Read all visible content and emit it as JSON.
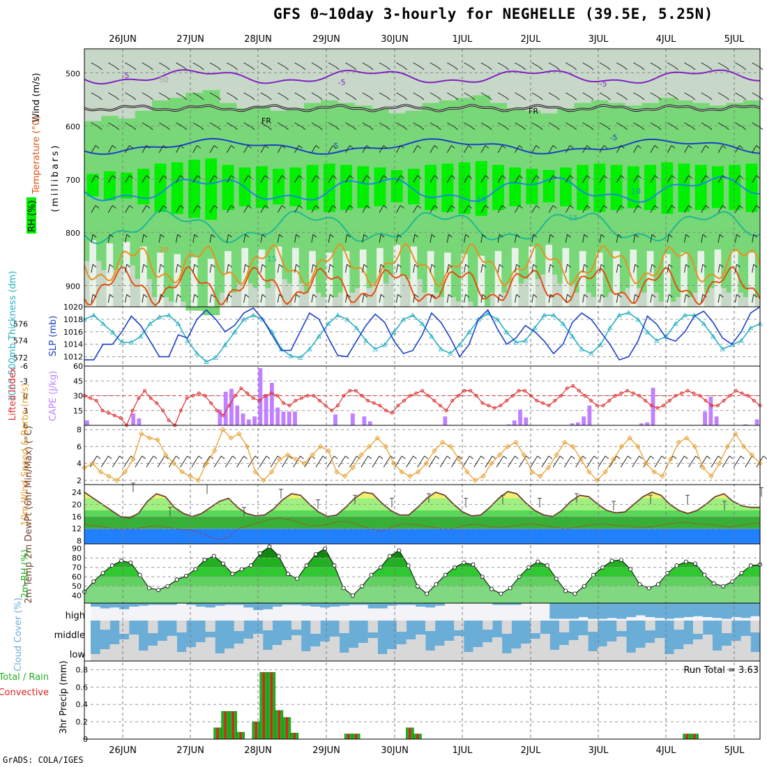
{
  "header": {
    "title": "GFS 0~10day 3-hourly for NEGHELLE (39.5E, 5.25N)",
    "credit": "GrADS: COLA/IGES",
    "run_total": "Run Total = 3.63"
  },
  "colors": {
    "rh_light": "#c8d8c8",
    "rh_mid": "#78d878",
    "rh_strong": "#00f000",
    "slp": "#1a3fc8",
    "thickness": "#27b0c4",
    "cape": "#c080ff",
    "lifted": "#e03030",
    "wind10m": "#e8a030",
    "temp_yellow": "#f0f070",
    "temp_green1": "#a0f080",
    "temp_green2": "#58d858",
    "temp_green3": "#38b038",
    "dewpoint_blue": "#2080ff",
    "rh2m_dark": "#20b020",
    "rh2m_light": "#80d880",
    "cloud_blue": "#6aaed8",
    "cloud_grey": "#d8d8d8",
    "cloud_white": "#f4f4f8",
    "precip_total": "#20b020",
    "precip_conv": "#e02020"
  },
  "chart_data": [
    {
      "panel": "upper-air",
      "type": "heatmap",
      "x_dates": [
        "26JUN",
        "27JUN",
        "28JUN",
        "29JUN",
        "30JUN",
        "1JUL",
        "2JUL",
        "3JUL",
        "4JUL",
        "5JUL"
      ],
      "ylabel": "(millibars)",
      "legend_labels": [
        "RH (%)",
        "Temperature (°C)",
        "Wind (m/s)"
      ],
      "y_ticks": [
        500,
        600,
        700,
        800,
        900
      ],
      "contour_labels": [
        {
          "text": "-5",
          "color": "#8020c0"
        },
        {
          "text": "-5",
          "color": "#8020c0"
        },
        {
          "text": "-5",
          "color": "#8020c0"
        },
        {
          "text": "FR",
          "color": "#000000"
        },
        {
          "text": "FR",
          "color": "#000000"
        },
        {
          "text": "5",
          "color": "#1a3fc8"
        },
        {
          "text": "-5",
          "color": "#1a3fc8"
        },
        {
          "text": "10",
          "color": "#1a8ad8"
        },
        {
          "text": "10",
          "color": "#1a8ad8"
        },
        {
          "text": "15",
          "color": "#20b890"
        },
        {
          "text": "15",
          "color": "#20b890"
        },
        {
          "text": "20",
          "color": "#e89020"
        },
        {
          "text": "50",
          "color": "#a0a0a0"
        }
      ],
      "rh_columns": [
        0.35,
        0.45,
        0.4,
        0.55,
        0.75,
        0.8,
        0.9,
        0.95,
        0.7,
        0.6,
        0.65,
        0.55,
        0.6,
        0.7,
        0.75,
        0.7,
        0.65,
        0.6,
        0.5,
        0.55,
        0.7,
        0.75,
        0.8,
        0.85,
        0.7,
        0.6,
        0.55,
        0.5,
        0.6,
        0.7,
        0.75,
        0.7,
        0.65,
        0.7,
        0.8,
        0.75,
        0.7,
        0.65,
        0.7,
        0.75
      ]
    },
    {
      "panel": "slp-thickness",
      "type": "line",
      "ylabel_left": "1000-500mb Thickness (dm)",
      "ylabel_right": "SLP (mb)",
      "left_ticks": [
        572,
        574,
        576
      ],
      "right_ticks": [
        1012,
        1014,
        1016,
        1018,
        1020
      ],
      "series": [
        {
          "name": "SLP",
          "values": [
            1011.5,
            1011.5,
            1014,
            1014,
            1016,
            1018.5,
            1017,
            1014.5,
            1012,
            1012,
            1015.5,
            1015,
            1018,
            1019.5,
            1018,
            1016,
            1017,
            1019,
            1019.8,
            1018,
            1015.5,
            1013,
            1013,
            1016,
            1019,
            1018,
            1015,
            1012.2,
            1012,
            1014.5,
            1017,
            1018.8,
            1017.5,
            1014.5,
            1012.5,
            1013,
            1015.5,
            1019,
            1017.5,
            1015,
            1012,
            1014,
            1018,
            1019.5,
            1016.5,
            1014,
            1015,
            1017,
            1016,
            1014.5,
            1012.5,
            1014,
            1017.5,
            1019,
            1018,
            1016,
            1014,
            1011.5,
            1012,
            1014.5,
            1018.5,
            1017.2,
            1015,
            1014.5,
            1016,
            1018.5,
            1019.3,
            1017.5,
            1015,
            1014,
            1016,
            1019,
            1020
          ]
        },
        {
          "name": "Thickness",
          "values": [
            576.5,
            577,
            576,
            575,
            573.8,
            573.8,
            574.5,
            576,
            576.8,
            577,
            576,
            574,
            572.5,
            571.5,
            572,
            573.5,
            575,
            576.5,
            577,
            576.5,
            575,
            573,
            572.2,
            572,
            573,
            574.5,
            576,
            577,
            576.5,
            575.5,
            574,
            573,
            573.5,
            575,
            576.5,
            577,
            576,
            574.5,
            573,
            572.5,
            573.5,
            575,
            576.5,
            577.2,
            576.5,
            575,
            573.8,
            574,
            575.5,
            577,
            577,
            576,
            574.5,
            573,
            572.5,
            573.5,
            575.5,
            577,
            577.3,
            576.5,
            575,
            574,
            574.5,
            576,
            577,
            577,
            576,
            574.5,
            573,
            573.5,
            574,
            575.5,
            576
          ]
        }
      ]
    },
    {
      "panel": "cape-lifted",
      "type": "bar",
      "ylabel_left": "Lifted Index",
      "ylabel_right": "CAPE (J/kg)",
      "left_ticks": [
        "-6",
        "-3",
        "0",
        "3",
        "6"
      ],
      "right_ticks": [
        15,
        30,
        45,
        60
      ],
      "cape": [
        5,
        0,
        0,
        0,
        0,
        0,
        0,
        0,
        12,
        7,
        0,
        0,
        0,
        0,
        0,
        0,
        0,
        0,
        0,
        0,
        0,
        0,
        0,
        16,
        34,
        37,
        20,
        12,
        6,
        9,
        58,
        31,
        43,
        18,
        14,
        14,
        14,
        0,
        0,
        0,
        0,
        0,
        0,
        11,
        0,
        0,
        12,
        0,
        9,
        4,
        0,
        0,
        0,
        0,
        0,
        0,
        0,
        0,
        0,
        0,
        0,
        0,
        9,
        0,
        0,
        0,
        0,
        0,
        0,
        0,
        0,
        0,
        0,
        1,
        5,
        16,
        8,
        0,
        0,
        0,
        0,
        0,
        0,
        0,
        2,
        3,
        9,
        20,
        0,
        0,
        0,
        0,
        0,
        0,
        0,
        0,
        2,
        3,
        38,
        0,
        0,
        0,
        0,
        0,
        0,
        0,
        0,
        14,
        29,
        9,
        0,
        0,
        0,
        0,
        1,
        0,
        6
      ],
      "lifted_index": [
        0,
        0.5,
        1,
        3,
        3.5,
        4,
        4.5,
        6,
        3,
        0.5,
        -1,
        0.5,
        1.5,
        3,
        5,
        6,
        3,
        0.5,
        0,
        -0.5,
        0,
        1.5,
        3,
        4,
        2,
        0,
        -1.5,
        -0.5,
        0.5,
        1,
        0,
        -0.5,
        0,
        1.5,
        2,
        1,
        0.5,
        0,
        0,
        1,
        2,
        3,
        2,
        0,
        -1,
        -1,
        0,
        1,
        1.5,
        2,
        3,
        3.5,
        2,
        1,
        0,
        -0.5,
        -1,
        0,
        1,
        2,
        3,
        1,
        0,
        -1,
        -1,
        0,
        1.5,
        2,
        2.5,
        2,
        1,
        0,
        -1,
        -1,
        0,
        1,
        1.5,
        2,
        1,
        0,
        -1.5,
        -2,
        -1,
        0,
        1,
        2,
        2,
        1,
        0,
        -0.5,
        -1,
        -0.5,
        0,
        1,
        2,
        2.5,
        2,
        1,
        0,
        -0.5,
        -1,
        -0.5,
        0,
        1,
        2,
        2,
        1,
        0,
        -1,
        -0.5,
        0,
        1,
        2
      ]
    },
    {
      "panel": "wind-10m",
      "type": "line",
      "ylabel": "10m Wind Speed & Barbs (m/s)",
      "y_ticks": [
        2,
        4,
        6,
        8
      ],
      "values": [
        3.5,
        4,
        3,
        2.5,
        2,
        3,
        4.5,
        7.5,
        7,
        6.8,
        5,
        4,
        3,
        2.5,
        2,
        4,
        5.5,
        8,
        7,
        7.5,
        6,
        3,
        2,
        3,
        4.5,
        5,
        4.5,
        4,
        5,
        6,
        5.5,
        3,
        2.5,
        3.5,
        5,
        6,
        7,
        6,
        4,
        3,
        2.5,
        3,
        4,
        5.5,
        6.5,
        6,
        4.5,
        3,
        2,
        2.5,
        4,
        5,
        6,
        6.5,
        5,
        3,
        2.5,
        3.5,
        5,
        6.5,
        6,
        4.5,
        3,
        2,
        3,
        4.5,
        6,
        7,
        6,
        4,
        3,
        2.5,
        4.5,
        6.5,
        7,
        6,
        3.5,
        2.5,
        4,
        6,
        7.5,
        6,
        5,
        4
      ]
    },
    {
      "panel": "temp-2m",
      "type": "area",
      "ylabel": "2m Temp 2m DewPt (6hr Min/Max) (°C)",
      "y_ticks": [
        8,
        12,
        16,
        20,
        24
      ],
      "temp": [
        24,
        22,
        20,
        18,
        16,
        15.5,
        17,
        21,
        23.5,
        22.5,
        19,
        17,
        16,
        17,
        19,
        21,
        22,
        19,
        17,
        16.2,
        16.5,
        18.5,
        21.5,
        23.5,
        23,
        20,
        17.5,
        16,
        16.5,
        19,
        22,
        24,
        23.5,
        20.5,
        18,
        16.5,
        16.5,
        19,
        22,
        24,
        23,
        20,
        17.5,
        16.2,
        16.5,
        19,
        22,
        24.2,
        23.5,
        20.5,
        18,
        16.5,
        16,
        18,
        21,
        23,
        22.5,
        20,
        18,
        17.2,
        17.5,
        20,
        22.5,
        24,
        23,
        20,
        18,
        17,
        18,
        20,
        22.5,
        23.5,
        21,
        19.5,
        19,
        19
      ],
      "dewpoint": [
        13.5,
        13,
        12.5,
        12,
        12,
        12,
        12.5,
        13,
        12.5,
        12,
        11.5,
        11,
        9.5,
        8.5,
        9,
        12,
        13,
        14,
        15,
        15.5,
        15,
        14,
        13,
        13,
        13.5,
        14.5,
        14,
        13,
        12,
        11,
        12.5,
        13.5,
        13.5,
        13,
        12.5,
        12,
        12,
        13,
        13.5,
        13,
        12.5,
        12.5,
        13,
        13.5,
        13.5,
        13,
        12.5,
        12,
        12.5,
        13,
        13.5,
        13.5,
        13,
        13,
        12.5,
        12.5,
        13,
        13.5,
        14,
        14,
        13.5,
        13.5,
        13,
        12.5,
        13,
        13.5,
        14
      ]
    },
    {
      "panel": "rh-2m",
      "type": "area",
      "ylabel": "2m RH (%)",
      "y_ticks": [
        40,
        50,
        60,
        70,
        80,
        90
      ],
      "values": [
        44,
        55,
        64,
        72,
        77,
        75,
        62,
        48,
        46,
        50,
        57,
        61,
        68,
        78,
        82,
        74,
        63,
        68,
        72,
        85,
        92,
        82,
        63,
        58,
        72,
        84,
        90,
        72,
        48,
        40,
        50,
        62,
        70,
        82,
        88,
        72,
        50,
        42,
        52,
        62,
        70,
        75,
        73,
        60,
        47,
        42,
        48,
        60,
        70,
        76,
        72,
        58,
        45,
        42,
        50,
        62,
        70,
        77,
        78,
        68,
        52,
        48,
        52,
        64,
        72,
        76,
        74,
        62,
        53,
        50,
        55,
        64,
        72,
        73
      ]
    },
    {
      "panel": "cloud-cover",
      "type": "area",
      "ylabel": "Cloud Cover (%)",
      "levels": [
        "high",
        "middle",
        "low"
      ],
      "high": [
        20,
        30,
        25,
        35,
        20,
        15,
        10,
        10,
        10,
        0,
        10,
        20,
        25,
        15,
        10,
        10,
        25,
        40,
        35,
        20,
        10,
        10,
        15,
        20,
        25,
        20,
        15,
        10,
        10,
        30,
        30,
        15,
        10,
        10,
        20,
        25,
        15,
        0,
        0,
        0,
        0,
        0,
        10,
        10,
        10,
        0,
        0,
        0,
        90,
        90,
        90,
        80,
        90,
        90,
        85,
        90,
        80,
        70,
        80,
        85,
        90,
        85,
        80,
        75,
        80,
        85,
        90,
        80,
        85,
        75
      ]
    },
    {
      "panel": "precip",
      "type": "bar",
      "ylabel_left": "Total / Rain Convective",
      "ylabel_right": "3hr Precip (mm)",
      "y_ticks": [
        0,
        0.2,
        0.4,
        0.6,
        0.8
      ],
      "values": [
        0,
        0,
        0,
        0,
        0,
        0,
        0,
        0,
        0,
        0,
        0,
        0,
        0,
        0,
        0,
        0,
        0.13,
        0.32,
        0.32,
        0.08,
        0,
        0.2,
        0.77,
        0.77,
        0.33,
        0.25,
        0.07,
        0,
        0,
        0,
        0,
        0,
        0,
        0.06,
        0.06,
        0,
        0,
        0,
        0,
        0,
        0,
        0.13,
        0.06,
        0,
        0,
        0,
        0,
        0,
        0,
        0,
        0,
        0,
        0,
        0,
        0,
        0,
        0,
        0,
        0,
        0,
        0,
        0,
        0,
        0,
        0,
        0,
        0,
        0,
        0,
        0,
        0,
        0,
        0,
        0,
        0,
        0,
        0,
        0.06,
        0.06,
        0,
        0,
        0,
        0,
        0,
        0,
        0,
        0
      ]
    }
  ]
}
